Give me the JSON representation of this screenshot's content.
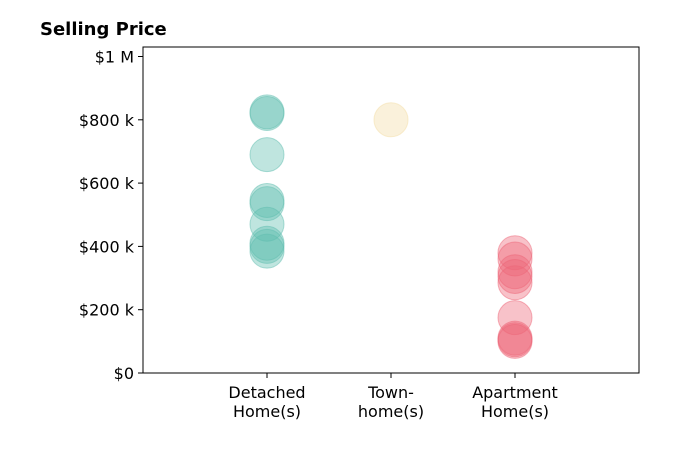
{
  "chart_data": {
    "type": "scatter",
    "title": "Selling Price",
    "xlabel": "",
    "ylabel": "",
    "categories": [
      [
        "Detached",
        "Home(s)"
      ],
      [
        "Town-",
        "home(s)"
      ],
      [
        "Apartment",
        "Home(s)"
      ]
    ],
    "y_ticks": [
      {
        "value": 0,
        "label": "$0"
      },
      {
        "value": 200000,
        "label": "$200 k"
      },
      {
        "value": 400000,
        "label": "$400 k"
      },
      {
        "value": 600000,
        "label": "$600 k"
      },
      {
        "value": 800000,
        "label": "$800 k"
      },
      {
        "value": 1000000,
        "label": "$1 M"
      }
    ],
    "ylim": [
      0,
      1030000
    ],
    "xlim": [
      0,
      4
    ],
    "grid": false,
    "series": [
      {
        "category_index": 0,
        "color": "#5FBDB0",
        "values": [
          820000,
          825000,
          690000,
          545000,
          535000,
          470000,
          410000,
          400000,
          385000
        ]
      },
      {
        "category_index": 1,
        "color": "#F3DDA6",
        "values": [
          800000
        ]
      },
      {
        "category_index": 2,
        "color": "#EE6677",
        "values": [
          380000,
          360000,
          320000,
          305000,
          285000,
          175000,
          110000,
          105000,
          100000
        ]
      }
    ]
  }
}
